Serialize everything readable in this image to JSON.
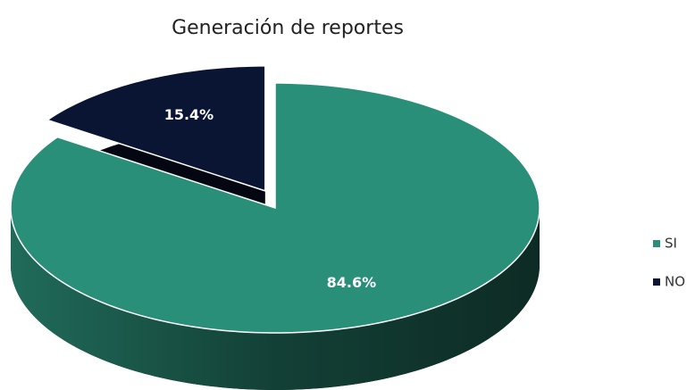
{
  "chart_data": {
    "type": "pie",
    "title": "Generación de reportes",
    "categories": [
      "SI",
      "NO"
    ],
    "values": [
      84.6,
      15.4
    ],
    "value_labels": [
      "84.6%",
      "15.4%"
    ],
    "colors": [
      "#2a8f78",
      "#0a1433"
    ],
    "exploded": [
      false,
      true
    ],
    "legend": "right"
  }
}
